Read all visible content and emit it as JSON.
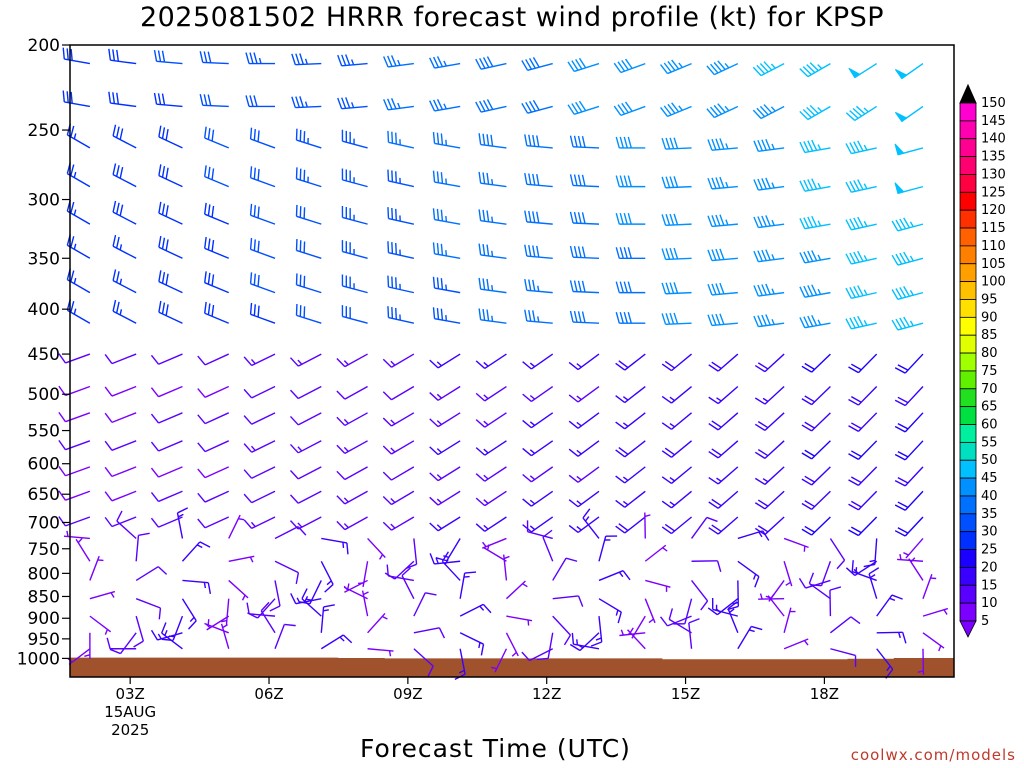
{
  "chart_data": {
    "type": "wind-barb-profile",
    "title": "2025081502 HRRR forecast wind profile (kt) for KPSP",
    "xlabel": "Forecast Time (UTC)",
    "ylabel": "",
    "y_ticks": [
      200,
      250,
      300,
      350,
      400,
      450,
      500,
      550,
      600,
      650,
      700,
      750,
      800,
      850,
      900,
      950,
      1000
    ],
    "ylim": [
      200,
      1000
    ],
    "y_scale": "log-pressure",
    "x_ticks": [
      {
        "hour": 3,
        "label": "03Z",
        "date_line1": "15AUG",
        "date_line2": "2025"
      },
      {
        "hour": 6,
        "label": "06Z"
      },
      {
        "hour": 9,
        "label": "09Z"
      },
      {
        "hour": 12,
        "label": "12Z"
      },
      {
        "hour": 15,
        "label": "15Z"
      },
      {
        "hour": 18,
        "label": "18Z"
      }
    ],
    "forecast_hours": [
      2,
      3,
      4,
      5,
      6,
      7,
      8,
      9,
      10,
      11,
      12,
      13,
      14,
      15,
      16,
      17,
      18,
      19,
      20
    ],
    "barb_levels": [
      210,
      235,
      262,
      290,
      320,
      350,
      383,
      415,
      450,
      490,
      525,
      565,
      605,
      645,
      690,
      730,
      775,
      815,
      855,
      895,
      935,
      975
    ],
    "colorbar": {
      "values": [
        5,
        10,
        15,
        20,
        25,
        30,
        35,
        40,
        45,
        50,
        55,
        60,
        65,
        70,
        75,
        80,
        85,
        90,
        95,
        100,
        105,
        110,
        115,
        120,
        125,
        130,
        135,
        140,
        145,
        150
      ],
      "colors": [
        "#7b00ff",
        "#5a00ff",
        "#3a00ff",
        "#1b00ff",
        "#0030ff",
        "#0050ff",
        "#0070ff",
        "#0090ff",
        "#00c0ff",
        "#00e0c0",
        "#00f0a0",
        "#00e040",
        "#20e020",
        "#60f000",
        "#a0ff00",
        "#e0ff00",
        "#ffff00",
        "#ffe000",
        "#ffc000",
        "#ffa000",
        "#ff8000",
        "#ff6000",
        "#ff3000",
        "#ff0000",
        "#ff0040",
        "#ff0070",
        "#ff0090",
        "#ff00b0",
        "#ff00d0",
        "#ff00ff"
      ]
    },
    "surface_color": "#a0522d",
    "grid": false
  },
  "credit": "coolwx.com/models"
}
